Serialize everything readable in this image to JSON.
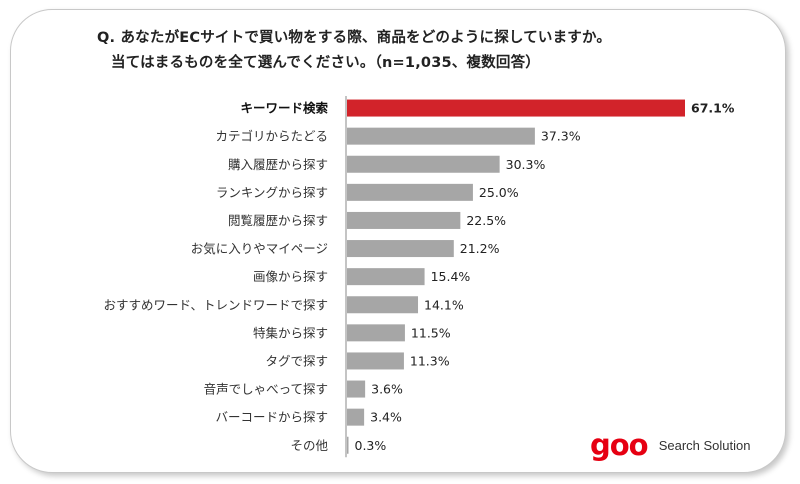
{
  "title_line1": "Q. あなたがECサイトで買い物をする際、商品をどのように探していますか。",
  "title_line2": "当てはまるものを全て選んでください。（n=1,035、複数回答）",
  "logo": {
    "brand": "goo",
    "subtitle": "Search Solution"
  },
  "colors": {
    "highlight": "#d2232a",
    "bar": "#a6a6a6",
    "axis": "#888888"
  },
  "chart_data": {
    "type": "bar",
    "orientation": "horizontal",
    "highlight_index": 0,
    "xlim": [
      0,
      67.1
    ],
    "categories": [
      "キーワード検索",
      "カテゴリからたどる",
      "購入履歴から探す",
      "ランキングから探す",
      "閲覧履歴から探す",
      "お気に入りやマイページ",
      "画像から探す",
      "おすすめワード、トレンドワードで探す",
      "特集から探す",
      "タグで探す",
      "音声でしゃべって探す",
      "バーコードから探す",
      "その他"
    ],
    "values": [
      67.1,
      37.3,
      30.3,
      25.0,
      22.5,
      21.2,
      15.4,
      14.1,
      11.5,
      11.3,
      3.6,
      3.4,
      0.3
    ],
    "value_labels": [
      "67.1%",
      "37.3%",
      "30.3%",
      "25.0%",
      "22.5%",
      "21.2%",
      "15.4%",
      "14.1%",
      "11.5%",
      "11.3%",
      "3.6%",
      "3.4%",
      "0.3%"
    ]
  }
}
